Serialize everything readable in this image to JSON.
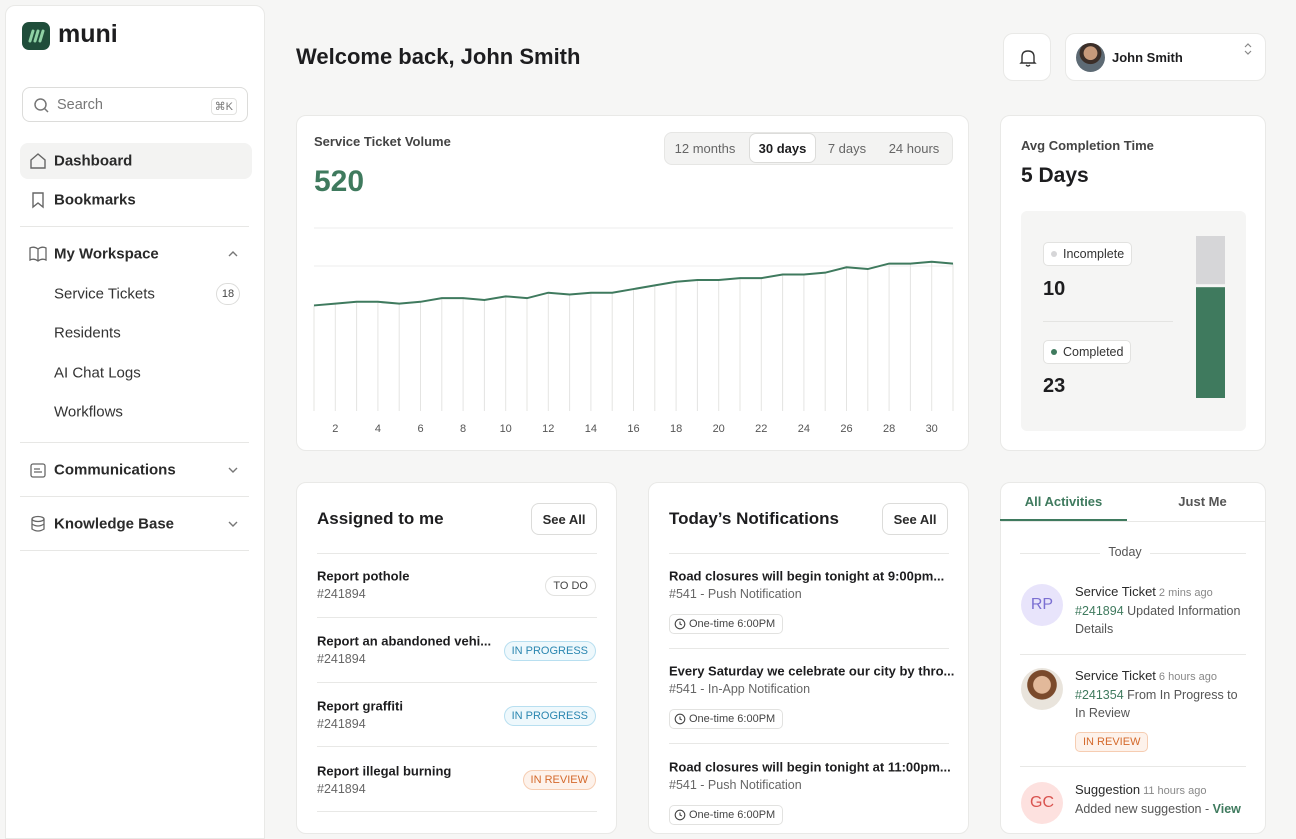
{
  "sidebar": {
    "logo": "muni",
    "search": {
      "placeholder": "Search",
      "shortcut": "⌘K"
    },
    "nav": [
      "Dashboard",
      "Bookmarks"
    ],
    "workspace": {
      "title": "My Workspace",
      "items": [
        {
          "label": "Service Tickets",
          "badge": 18
        },
        {
          "label": "Residents"
        },
        {
          "label": "AI Chat Logs"
        },
        {
          "label": "Workflows"
        }
      ]
    },
    "sections": [
      "Communications",
      "Knowledge Base"
    ]
  },
  "header": {
    "title": "Welcome back, John Smith",
    "user": "John Smith"
  },
  "ranges": [
    "12 months",
    "30 days",
    "7 days",
    "24 hours"
  ],
  "chart_data": {
    "type": "line",
    "title": "Service Ticket Volume",
    "total": 520,
    "color": "#3f7a5e",
    "x": [
      1,
      2,
      3,
      4,
      5,
      6,
      7,
      8,
      9,
      10,
      11,
      12,
      13,
      14,
      15,
      16,
      17,
      18,
      19,
      20,
      21,
      22,
      23,
      24,
      25,
      26,
      27,
      28,
      29,
      30,
      31
    ],
    "values": [
      58,
      59,
      60,
      60,
      59,
      60,
      62,
      62,
      61,
      63,
      62,
      65,
      64,
      65,
      65,
      67,
      69,
      71,
      72,
      72,
      73,
      73,
      75,
      75,
      76,
      79,
      78,
      81,
      81,
      82,
      81
    ],
    "xlim": [
      1,
      31
    ],
    "ylim": [
      0,
      100
    ],
    "xticks": [
      2,
      4,
      6,
      8,
      10,
      12,
      14,
      16,
      18,
      20,
      22,
      24,
      26,
      28,
      30
    ]
  },
  "completion": {
    "title": "Avg Completion Time",
    "value": "5 Days",
    "series": [
      {
        "name": "Incomplete",
        "value": 10,
        "color": "#d6d6d8"
      },
      {
        "name": "Completed",
        "value": 23,
        "color": "#3f7a5e"
      }
    ]
  },
  "assigned": {
    "title": "Assigned to me",
    "action": "See All",
    "items": [
      {
        "title": "Report pothole",
        "id": "#241894",
        "status": "TO DO"
      },
      {
        "title": "Report an abandoned vehi...",
        "id": "#241894",
        "status": "IN PROGRESS"
      },
      {
        "title": "Report graffiti",
        "id": "#241894",
        "status": "IN PROGRESS"
      },
      {
        "title": "Report illegal burning",
        "id": "#241894",
        "status": "IN REVIEW"
      }
    ]
  },
  "notifications": {
    "title": "Today’s Notifications",
    "action": "See All",
    "items": [
      {
        "title": "Road closures will begin tonight at 9:00pm...",
        "sub": "#541 - Push Notification",
        "time": "One-time 6:00PM"
      },
      {
        "title": "Every Saturday we celebrate our city by thro...",
        "sub": "#541 - In-App Notification",
        "time": "One-time 6:00PM"
      },
      {
        "title": "Road closures will begin tonight at 11:00pm...",
        "sub": "#541 - Push Notification",
        "time": "One-time 6:00PM"
      }
    ]
  },
  "activity": {
    "tabs": [
      "All Activities",
      "Just Me"
    ],
    "day": "Today",
    "items": [
      {
        "initials": "RP",
        "type": "Service Ticket",
        "time": "2 mins ago",
        "ref": "#241894",
        "text": "Updated Information Details"
      },
      {
        "type": "Service Ticket",
        "time": "6 hours ago",
        "ref": "#241354",
        "text": "From In Progress to In Review",
        "status": "IN REVIEW"
      },
      {
        "initials": "GC",
        "type": "Suggestion",
        "time": "11 hours ago",
        "text": "Added new suggestion -",
        "link": "View"
      }
    ]
  }
}
